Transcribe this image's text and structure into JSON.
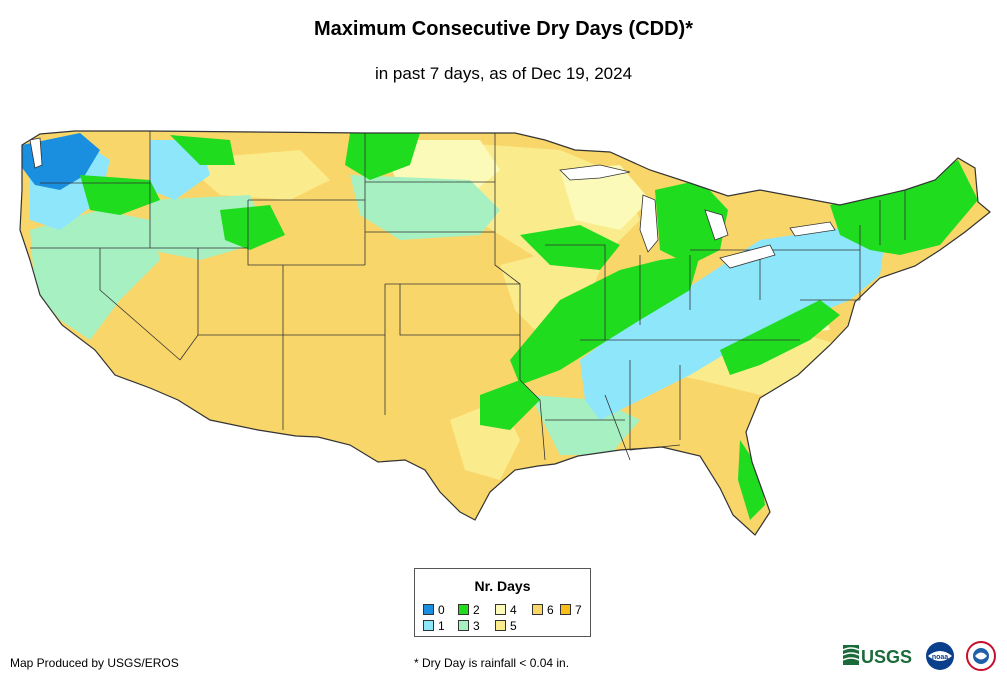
{
  "title": "Maximum Consecutive Dry Days (CDD)*",
  "subtitle": "in past 7 days, as of Dec 19, 2024",
  "legend": {
    "title": "Nr. Days",
    "items": [
      {
        "label": "0",
        "color": "#1a8fe0"
      },
      {
        "label": "1",
        "color": "#8ee6fb"
      },
      {
        "label": "2",
        "color": "#1fdc1f"
      },
      {
        "label": "3",
        "color": "#a6f0c2"
      },
      {
        "label": "4",
        "color": "#fbfab8"
      },
      {
        "label": "5",
        "color": "#faec8c"
      },
      {
        "label": "6",
        "color": "#f9d66a"
      },
      {
        "label": "7",
        "color": "#f7bf1a"
      }
    ]
  },
  "credit": "Map Produced by USGS/EROS",
  "footnote": "* Dry Day is rainfall < 0.04 in.",
  "logos": {
    "usgs_text": "USGS",
    "noaa_text": "noaa"
  }
}
